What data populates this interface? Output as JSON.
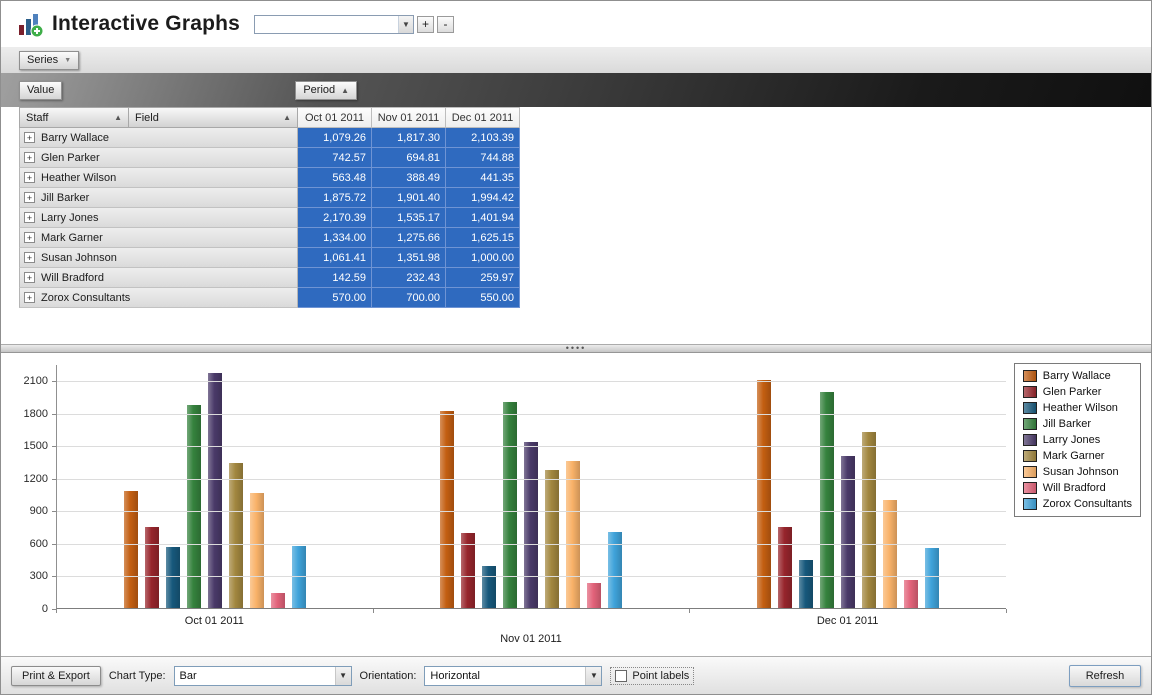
{
  "window": {
    "title": "Interactive Graphs"
  },
  "top_toolbar": {
    "graph_selector_value": "",
    "add_button": "+",
    "remove_button": "-"
  },
  "pivot": {
    "series_field": "Series",
    "value_field": "Value",
    "period_field": "Period",
    "staff_header": "Staff",
    "field_header": "Field",
    "period_columns": [
      "Oct 01 2011",
      "Nov 01 2011",
      "Dec 01 2011"
    ],
    "rows": [
      {
        "name": "Barry Wallace",
        "values": [
          "1,079.26",
          "1,817.30",
          "2,103.39"
        ]
      },
      {
        "name": "Glen Parker",
        "values": [
          "742.57",
          "694.81",
          "744.88"
        ]
      },
      {
        "name": "Heather Wilson",
        "values": [
          "563.48",
          "388.49",
          "441.35"
        ]
      },
      {
        "name": "Jill Barker",
        "values": [
          "1,875.72",
          "1,901.40",
          "1,994.42"
        ]
      },
      {
        "name": "Larry Jones",
        "values": [
          "2,170.39",
          "1,535.17",
          "1,401.94"
        ]
      },
      {
        "name": "Mark Garner",
        "values": [
          "1,334.00",
          "1,275.66",
          "1,625.15"
        ]
      },
      {
        "name": "Susan Johnson",
        "values": [
          "1,061.41",
          "1,351.98",
          "1,000.00"
        ]
      },
      {
        "name": "Will Bradford",
        "values": [
          "142.59",
          "232.43",
          "259.97"
        ]
      },
      {
        "name": "Zorox Consultants",
        "values": [
          "570.00",
          "700.00",
          "550.00"
        ]
      }
    ]
  },
  "chart_data": {
    "type": "bar",
    "categories": [
      "Oct 01 2011",
      "Nov 01 2011",
      "Dec 01 2011"
    ],
    "series": [
      {
        "name": "Barry Wallace",
        "color": "#c35e11",
        "values": [
          1079.26,
          1817.3,
          2103.39
        ]
      },
      {
        "name": "Glen Parker",
        "color": "#97252c",
        "values": [
          742.57,
          694.81,
          744.88
        ]
      },
      {
        "name": "Heather Wilson",
        "color": "#17597c",
        "values": [
          563.48,
          388.49,
          441.35
        ]
      },
      {
        "name": "Jill Barker",
        "color": "#35823d",
        "values": [
          1875.72,
          1901.4,
          1994.42
        ]
      },
      {
        "name": "Larry Jones",
        "color": "#4a3a69",
        "values": [
          2170.39,
          1535.17,
          1401.94
        ]
      },
      {
        "name": "Mark Garner",
        "color": "#a2873f",
        "values": [
          1334.0,
          1275.66,
          1625.15
        ]
      },
      {
        "name": "Susan Johnson",
        "color": "#f9b269",
        "values": [
          1061.41,
          1351.98,
          1000.0
        ]
      },
      {
        "name": "Will Bradford",
        "color": "#e2637a",
        "values": [
          142.59,
          232.43,
          259.97
        ]
      },
      {
        "name": "Zorox Consultants",
        "color": "#3fa3da",
        "values": [
          570.0,
          700.0,
          550.0
        ]
      }
    ],
    "title": "",
    "xlabel": "",
    "ylabel": "",
    "yticks": [
      0,
      300,
      600,
      900,
      1200,
      1500,
      1800,
      2100
    ],
    "ylim": [
      0,
      2250
    ],
    "grid": true,
    "legend_position": "right"
  },
  "bottom_toolbar": {
    "print_export_button": "Print & Export",
    "chart_type_label": "Chart Type:",
    "chart_type_value": "Bar",
    "orientation_label": "Orientation:",
    "orientation_value": "Horizontal",
    "point_labels_label": "Point labels",
    "point_labels_checked": false,
    "refresh_button": "Refresh"
  }
}
